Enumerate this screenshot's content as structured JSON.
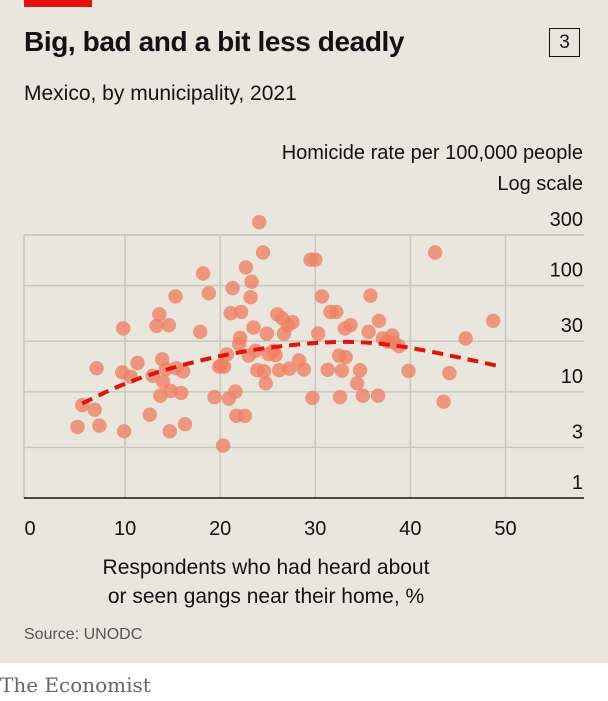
{
  "header": {
    "title": "Big, bad and a bit less deadly",
    "badge": "3",
    "subtitle": "Mexico, by municipality, 2021"
  },
  "axis_titles": {
    "y_line1": "Homicide rate per 100,000 people",
    "y_line2": "Log scale",
    "x_line1": "Respondents who had heard about",
    "x_line2": "or seen gangs near their home, %"
  },
  "footer": {
    "source": "Source: UNODC",
    "brand": "The Economist"
  },
  "colors": {
    "background": "#e9e7dd",
    "point": "#f07f62",
    "trend": "#e3120b",
    "accent": "#e3120b"
  },
  "chart_data": {
    "type": "scatter",
    "title": "Big, bad and a bit less deadly",
    "subtitle": "Mexico, by municipality, 2021",
    "xlabel": "Respondents who had heard about or seen gangs near their home, %",
    "ylabel": "Homicide rate per 100,000 people",
    "yscale": "log",
    "xlim": [
      0,
      55
    ],
    "ylim": [
      1,
      300
    ],
    "xticks": [
      0,
      10,
      20,
      30,
      40,
      50
    ],
    "yticks": [
      1,
      3,
      10,
      30,
      100,
      300
    ],
    "grid": true,
    "points": [
      [
        5,
        3.3
      ],
      [
        5.5,
        5.3
      ],
      [
        6.8,
        4.8
      ],
      [
        7,
        11.8
      ],
      [
        7.3,
        3.4
      ],
      [
        9.7,
        10.8
      ],
      [
        9.8,
        28
      ],
      [
        9.9,
        3
      ],
      [
        10.6,
        9.8
      ],
      [
        11.3,
        13.2
      ],
      [
        12.6,
        4.3
      ],
      [
        12.9,
        10
      ],
      [
        13.3,
        29.5
      ],
      [
        13.6,
        38
      ],
      [
        13.7,
        6.5
      ],
      [
        13.9,
        14.3
      ],
      [
        14,
        8.8
      ],
      [
        14.3,
        11.6
      ],
      [
        14.6,
        30
      ],
      [
        14.7,
        3
      ],
      [
        14.8,
        7.2
      ],
      [
        15.3,
        56
      ],
      [
        15.4,
        11.8
      ],
      [
        15.9,
        6.9
      ],
      [
        16.1,
        11
      ],
      [
        16.3,
        3.5
      ],
      [
        17.9,
        26
      ],
      [
        18.2,
        92
      ],
      [
        18.8,
        60
      ],
      [
        19.4,
        6.3
      ],
      [
        19.9,
        12.2
      ],
      [
        20.1,
        12.5
      ],
      [
        20.3,
        2.2
      ],
      [
        20.4,
        12.2
      ],
      [
        20.7,
        15.9
      ],
      [
        20.9,
        6.1
      ],
      [
        21.1,
        39
      ],
      [
        21.3,
        67
      ],
      [
        21.6,
        7.1
      ],
      [
        21.7,
        4.2
      ],
      [
        22,
        20
      ],
      [
        22.1,
        22.8
      ],
      [
        22.2,
        40
      ],
      [
        22.6,
        4.2
      ],
      [
        22.7,
        105
      ],
      [
        23,
        15.5
      ],
      [
        23.2,
        55
      ],
      [
        23.3,
        77
      ],
      [
        23.5,
        28.5
      ],
      [
        23.7,
        17.2
      ],
      [
        23.9,
        11.3
      ],
      [
        24.1,
        280
      ],
      [
        24.5,
        145
      ],
      [
        24.6,
        11
      ],
      [
        24.8,
        8.5
      ],
      [
        24.9,
        25
      ],
      [
        25.1,
        16
      ],
      [
        25.6,
        17.2
      ],
      [
        25.8,
        15.7
      ],
      [
        26,
        38
      ],
      [
        26.2,
        11.3
      ],
      [
        26.5,
        35
      ],
      [
        26.7,
        25
      ],
      [
        27.1,
        30
      ],
      [
        27.3,
        11.7
      ],
      [
        27.6,
        32
      ],
      [
        28.3,
        14
      ],
      [
        28.8,
        11.5
      ],
      [
        29.5,
        124
      ],
      [
        29.7,
        6.2
      ],
      [
        30,
        124
      ],
      [
        30.3,
        25
      ],
      [
        30.7,
        56
      ],
      [
        31.3,
        11.4
      ],
      [
        31.6,
        40
      ],
      [
        32.2,
        40
      ],
      [
        32.5,
        15.5
      ],
      [
        32.6,
        6.3
      ],
      [
        32.8,
        11.2
      ],
      [
        33.1,
        28
      ],
      [
        33.2,
        15
      ],
      [
        33.7,
        30
      ],
      [
        34.4,
        8.5
      ],
      [
        34.7,
        11.3
      ],
      [
        35,
        6.5
      ],
      [
        35.6,
        26
      ],
      [
        35.8,
        57
      ],
      [
        36.6,
        6.5
      ],
      [
        36.7,
        33
      ],
      [
        37.1,
        22.5
      ],
      [
        37.6,
        21
      ],
      [
        38.1,
        24
      ],
      [
        38.3,
        20.5
      ],
      [
        38.8,
        19
      ],
      [
        39.8,
        11.1
      ],
      [
        42.6,
        145
      ],
      [
        43.5,
        5.7
      ],
      [
        44.1,
        10.6
      ],
      [
        45.8,
        22.5
      ],
      [
        48.7,
        33
      ]
    ],
    "trend": [
      [
        5.5,
        5.5
      ],
      [
        10,
        8.6
      ],
      [
        15,
        12
      ],
      [
        20,
        15.5
      ],
      [
        25,
        18.5
      ],
      [
        30,
        20.5
      ],
      [
        33,
        21
      ],
      [
        36,
        20.5
      ],
      [
        40,
        18.5
      ],
      [
        45,
        15
      ],
      [
        49,
        12.5
      ]
    ]
  }
}
